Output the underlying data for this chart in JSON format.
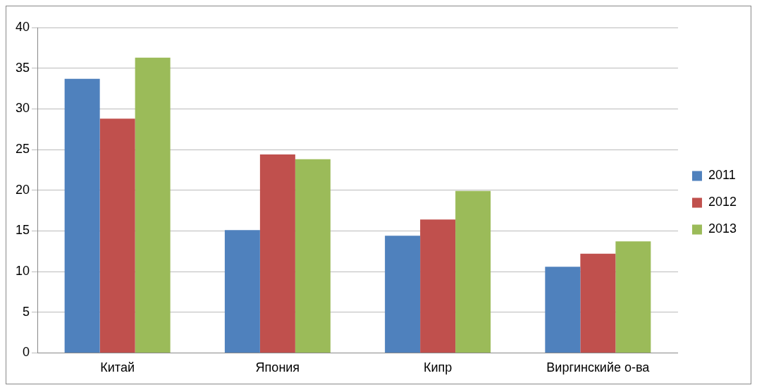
{
  "chart_data": {
    "type": "bar",
    "categories": [
      "Китай",
      "Япония",
      "Кипр",
      "Виргинскийе о-ва"
    ],
    "series": [
      {
        "name": "2011",
        "color": "#4f81bd",
        "values": [
          33.7,
          15.1,
          14.4,
          10.6
        ]
      },
      {
        "name": "2012",
        "color": "#c0504d",
        "values": [
          28.8,
          24.4,
          16.4,
          12.2
        ]
      },
      {
        "name": "2013",
        "color": "#9bbb59",
        "values": [
          36.3,
          23.8,
          19.9,
          13.7
        ]
      }
    ],
    "ylim": [
      0,
      40
    ],
    "yticks": [
      0,
      5,
      10,
      15,
      20,
      25,
      30,
      35,
      40
    ],
    "grid": "y",
    "legend": "right"
  }
}
